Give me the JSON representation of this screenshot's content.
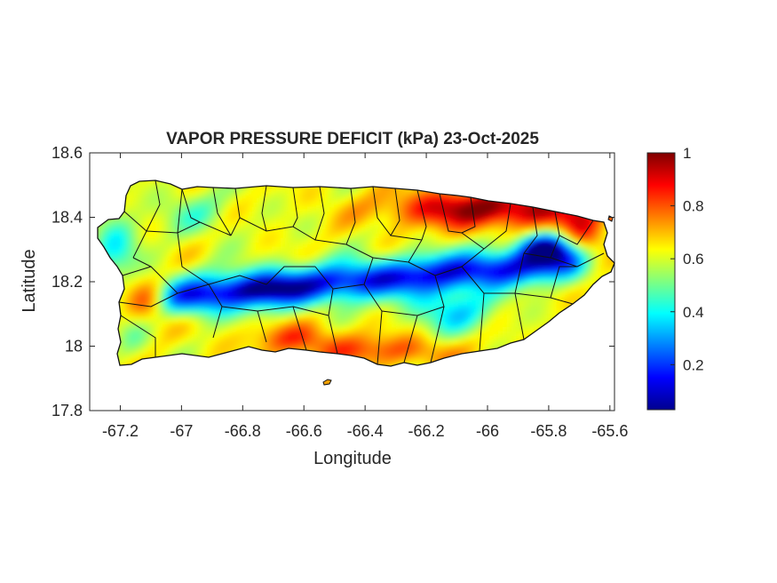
{
  "figure": {
    "title": "VAPOR PRESSURE DEFICIT (kPa) 23-Oct-2025",
    "xlabel": "Longitude",
    "ylabel": "Latitude",
    "x_ticks": [
      "-67.2",
      "-67",
      "-66.8",
      "-66.6",
      "-66.4",
      "-66.2",
      "-66",
      "-65.8",
      "-65.6"
    ],
    "y_ticks": [
      "18.6",
      "18.4",
      "18.2",
      "18",
      "17.8"
    ],
    "colorbar_ticks": [
      "1",
      "0.8",
      "0.6",
      "0.4",
      "0.2"
    ]
  },
  "map_data": {
    "region": "Puerto Rico",
    "variable": "Vapor pressure deficit",
    "unit": "kPa",
    "xlim": [
      -67.3,
      -65.585
    ],
    "ylim": [
      17.8,
      18.6
    ],
    "color_range": [
      0.03,
      1.0
    ],
    "colormap": "jet",
    "pattern": {
      "low_vpd_band": "central mountain ridge, approx. 0.1-0.3 kPa, from -66.9 to -65.8",
      "high_vpd": "north-east coast approx. 0.9-1.0 kPa; south and south-west coasts approx. 0.7-0.85 kPa",
      "west_coast": "approx. 0.4-0.55 kPa"
    }
  },
  "colors": {
    "axis": "#262626",
    "boundary": "#111111",
    "cmap_low": "#00008f",
    "cmap_high": "#800000"
  }
}
